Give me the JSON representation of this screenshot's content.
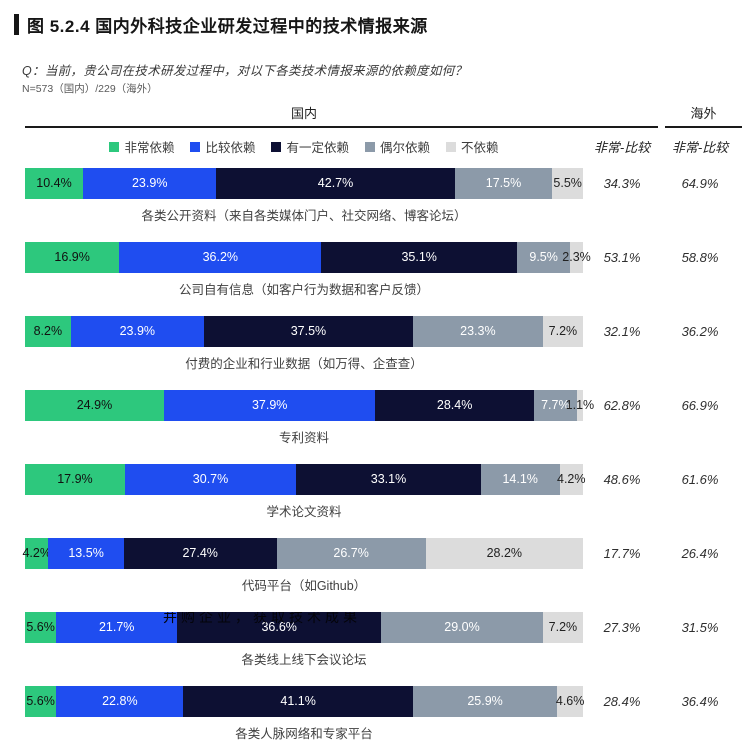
{
  "title": "图 5.2.4 国内外科技企业研发过程中的技术情报来源",
  "question": "Q：当前，贵公司在技术研发过程中，对以下各类技术情报来源的依赖度如何？",
  "sample": "N=573（国内）/229（海外）",
  "sections": {
    "domestic": "国内",
    "overseas": "海外"
  },
  "summary_headers": {
    "domestic": "非常-比较",
    "overseas": "非常-比较"
  },
  "legend": [
    {
      "label": "非常依赖",
      "color": "#2dc87d",
      "text_color": "#111111"
    },
    {
      "label": "比较依赖",
      "color": "#1f4df0",
      "text_color": "#ffffff"
    },
    {
      "label": "有一定依赖",
      "color": "#0d1033",
      "text_color": "#ffffff"
    },
    {
      "label": "偶尔依赖",
      "color": "#8c9aa9",
      "text_color": "#ffffff"
    },
    {
      "label": "不依赖",
      "color": "#dcdcdc",
      "text_color": "#222222"
    }
  ],
  "ghost_text": {
    "text": "并购企业，获取技术成果",
    "row_index": 6
  },
  "chart_data": {
    "type": "bar",
    "stacked": true,
    "orientation": "horizontal",
    "unit": "%",
    "legend_position": "top",
    "x_range": [
      0,
      100
    ],
    "title": "图 5.2.4 国内外科技企业研发过程中的技术情报来源",
    "categories": [
      "各类公开资料（来自各类媒体门户、社交网络、博客论坛）",
      "公司自有信息（如客户行为数据和客户反馈）",
      "付费的企业和行业数据（如万得、企查查）",
      "专利资料",
      "学术论文资料",
      "代码平台（如Github）",
      "各类线上线下会议论坛",
      "各类人脉网络和专家平台"
    ],
    "series": [
      {
        "name": "非常依赖",
        "values": [
          10.4,
          16.9,
          8.2,
          24.9,
          17.9,
          4.2,
          5.6,
          5.6
        ]
      },
      {
        "name": "比较依赖",
        "values": [
          23.9,
          36.2,
          23.9,
          37.9,
          30.7,
          13.5,
          21.7,
          22.8
        ]
      },
      {
        "name": "有一定依赖",
        "values": [
          42.7,
          35.1,
          37.5,
          28.4,
          33.1,
          27.4,
          36.6,
          41.1
        ]
      },
      {
        "name": "偶尔依赖",
        "values": [
          17.5,
          9.5,
          23.3,
          7.7,
          14.1,
          26.7,
          29.0,
          25.9
        ]
      },
      {
        "name": "不依赖",
        "values": [
          5.5,
          2.3,
          7.2,
          1.1,
          4.2,
          28.2,
          7.2,
          4.6
        ]
      }
    ],
    "summary_domestic_top2": [
      "34.3%",
      "53.1%",
      "32.1%",
      "62.8%",
      "48.6%",
      "17.7%",
      "27.3%",
      "28.4%"
    ],
    "summary_overseas_top2": [
      "64.9%",
      "58.8%",
      "36.2%",
      "66.9%",
      "61.6%",
      "26.4%",
      "31.5%",
      "36.4%"
    ]
  }
}
